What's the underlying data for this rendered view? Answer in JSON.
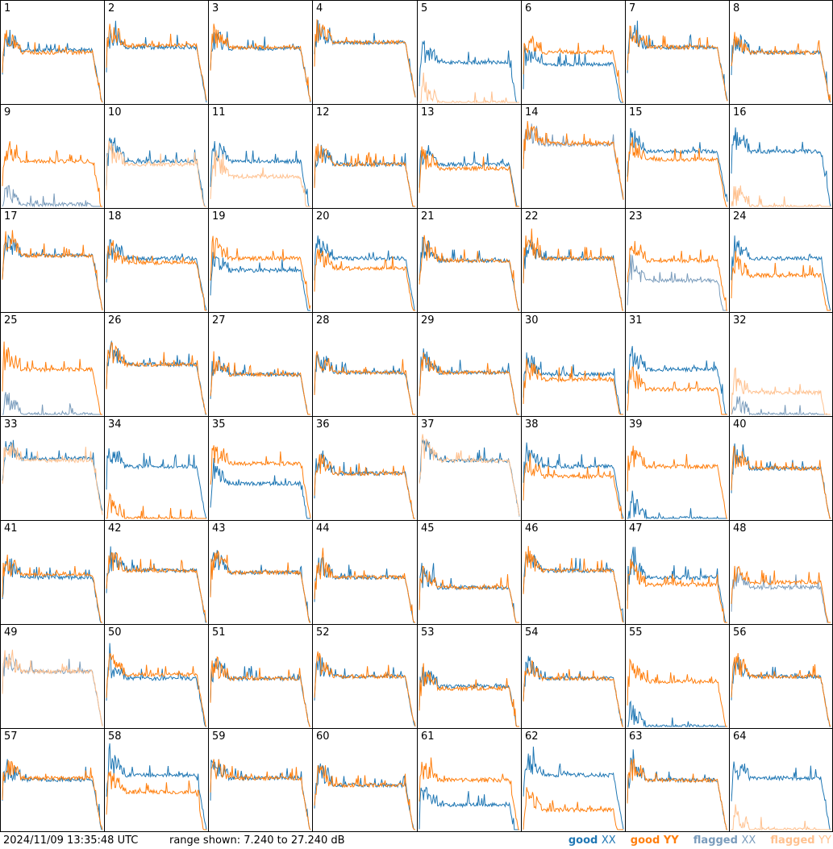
{
  "timestamp": "2024/11/09 13:35:48 UTC",
  "range": "range shown: 7.240 to 27.240 dB",
  "legend": {
    "good_xx": {
      "prefix": "good",
      "tag": "XX",
      "color": "#1f77b4"
    },
    "good_yy": {
      "prefix": "good",
      "tag": "YY",
      "color": "#ff7f0e"
    },
    "flagged_xx": {
      "prefix": "flagged",
      "tag": "XX",
      "color": "#7a9cbc"
    },
    "flagged_yy": {
      "prefix": "flagged",
      "tag": "YY",
      "color": "#ffc18f"
    }
  },
  "chart_data": {
    "type": "line",
    "title": "",
    "ylim": [
      7.24,
      27.24
    ],
    "ylabel_unit": "dB",
    "grid": false,
    "legend_placement": "bottom-right",
    "panel_count": 64,
    "panels": [
      {
        "label": "1",
        "xx": "good",
        "yy": "good",
        "xx_level": 0.52,
        "yy_level": 0.5
      },
      {
        "label": "2",
        "xx": "good",
        "yy": "good",
        "xx_level": 0.55,
        "yy_level": 0.57
      },
      {
        "label": "3",
        "xx": "good",
        "yy": "good",
        "xx_level": 0.54,
        "yy_level": 0.55
      },
      {
        "label": "4",
        "xx": "good",
        "yy": "good",
        "xx_level": 0.6,
        "yy_level": 0.6
      },
      {
        "label": "5",
        "xx": "good",
        "yy": "flagged",
        "xx_level": 0.4,
        "yy_level": 0.0
      },
      {
        "label": "6",
        "xx": "good",
        "yy": "good",
        "xx_level": 0.38,
        "yy_level": 0.5
      },
      {
        "label": "7",
        "xx": "good",
        "yy": "good",
        "xx_level": 0.55,
        "yy_level": 0.55
      },
      {
        "label": "8",
        "xx": "good",
        "yy": "good",
        "xx_level": 0.5,
        "yy_level": 0.5
      },
      {
        "label": "9",
        "xx": "flagged",
        "yy": "good",
        "xx_level": 0.02,
        "yy_level": 0.45
      },
      {
        "label": "10",
        "xx": "good",
        "yy": "flagged",
        "xx_level": 0.45,
        "yy_level": 0.42
      },
      {
        "label": "11",
        "xx": "good",
        "yy": "flagged",
        "xx_level": 0.45,
        "yy_level": 0.3
      },
      {
        "label": "12",
        "xx": "good",
        "yy": "good",
        "xx_level": 0.42,
        "yy_level": 0.42
      },
      {
        "label": "13",
        "xx": "good",
        "yy": "good",
        "xx_level": 0.42,
        "yy_level": 0.38
      },
      {
        "label": "14",
        "xx": "flagged",
        "yy": "good",
        "xx_level": 0.62,
        "yy_level": 0.63
      },
      {
        "label": "15",
        "xx": "good",
        "yy": "good",
        "xx_level": 0.55,
        "yy_level": 0.47
      },
      {
        "label": "16",
        "xx": "good",
        "yy": "flagged",
        "xx_level": 0.55,
        "yy_level": 0.0
      },
      {
        "label": "17",
        "xx": "good",
        "yy": "good",
        "xx_level": 0.55,
        "yy_level": 0.55
      },
      {
        "label": "18",
        "xx": "good",
        "yy": "good",
        "xx_level": 0.52,
        "yy_level": 0.48
      },
      {
        "label": "19",
        "xx": "good",
        "yy": "good",
        "xx_level": 0.4,
        "yy_level": 0.52
      },
      {
        "label": "20",
        "xx": "good",
        "yy": "good",
        "xx_level": 0.52,
        "yy_level": 0.42
      },
      {
        "label": "21",
        "xx": "good",
        "yy": "good",
        "xx_level": 0.5,
        "yy_level": 0.5
      },
      {
        "label": "22",
        "xx": "good",
        "yy": "good",
        "xx_level": 0.52,
        "yy_level": 0.52
      },
      {
        "label": "23",
        "xx": "flagged",
        "yy": "good",
        "xx_level": 0.3,
        "yy_level": 0.5
      },
      {
        "label": "24",
        "xx": "good",
        "yy": "good",
        "xx_level": 0.52,
        "yy_level": 0.35
      },
      {
        "label": "25",
        "xx": "flagged",
        "yy": "good",
        "xx_level": 0.0,
        "yy_level": 0.45
      },
      {
        "label": "26",
        "xx": "good",
        "yy": "good",
        "xx_level": 0.5,
        "yy_level": 0.5
      },
      {
        "label": "27",
        "xx": "good",
        "yy": "good",
        "xx_level": 0.4,
        "yy_level": 0.4
      },
      {
        "label": "28",
        "xx": "good",
        "yy": "good",
        "xx_level": 0.42,
        "yy_level": 0.42
      },
      {
        "label": "29",
        "xx": "good",
        "yy": "good",
        "xx_level": 0.42,
        "yy_level": 0.42
      },
      {
        "label": "30",
        "xx": "good",
        "yy": "good",
        "xx_level": 0.4,
        "yy_level": 0.35
      },
      {
        "label": "31",
        "xx": "good",
        "yy": "good",
        "xx_level": 0.45,
        "yy_level": 0.25
      },
      {
        "label": "32",
        "xx": "flagged",
        "yy": "flagged",
        "xx_level": 0.0,
        "yy_level": 0.22
      },
      {
        "label": "33",
        "xx": "good",
        "yy": "flagged",
        "xx_level": 0.6,
        "yy_level": 0.58
      },
      {
        "label": "34",
        "xx": "good",
        "yy": "good",
        "xx_level": 0.52,
        "yy_level": 0.0
      },
      {
        "label": "35",
        "xx": "good",
        "yy": "good",
        "xx_level": 0.35,
        "yy_level": 0.55
      },
      {
        "label": "36",
        "xx": "good",
        "yy": "good",
        "xx_level": 0.45,
        "yy_level": 0.45
      },
      {
        "label": "37",
        "xx": "good",
        "yy": "flagged",
        "xx_level": 0.58,
        "yy_level": 0.58
      },
      {
        "label": "38",
        "xx": "good",
        "yy": "good",
        "xx_level": 0.52,
        "yy_level": 0.42
      },
      {
        "label": "39",
        "xx": "good",
        "yy": "good",
        "xx_level": 0.0,
        "yy_level": 0.52
      },
      {
        "label": "40",
        "xx": "good",
        "yy": "good",
        "xx_level": 0.5,
        "yy_level": 0.5
      },
      {
        "label": "41",
        "xx": "good",
        "yy": "good",
        "xx_level": 0.45,
        "yy_level": 0.48
      },
      {
        "label": "42",
        "xx": "good",
        "yy": "good",
        "xx_level": 0.52,
        "yy_level": 0.52
      },
      {
        "label": "43",
        "xx": "good",
        "yy": "good",
        "xx_level": 0.5,
        "yy_level": 0.5
      },
      {
        "label": "44",
        "xx": "good",
        "yy": "good",
        "xx_level": 0.45,
        "yy_level": 0.45
      },
      {
        "label": "45",
        "xx": "good",
        "yy": "good",
        "xx_level": 0.35,
        "yy_level": 0.35
      },
      {
        "label": "46",
        "xx": "good",
        "yy": "good",
        "xx_level": 0.52,
        "yy_level": 0.52
      },
      {
        "label": "47",
        "xx": "good",
        "yy": "good",
        "xx_level": 0.45,
        "yy_level": 0.38
      },
      {
        "label": "48",
        "xx": "flagged",
        "yy": "good",
        "xx_level": 0.35,
        "yy_level": 0.4
      },
      {
        "label": "49",
        "xx": "flagged",
        "yy": "flagged",
        "xx_level": 0.55,
        "yy_level": 0.55
      },
      {
        "label": "50",
        "xx": "good",
        "yy": "good",
        "xx_level": 0.48,
        "yy_level": 0.52
      },
      {
        "label": "51",
        "xx": "good",
        "yy": "good",
        "xx_level": 0.48,
        "yy_level": 0.48
      },
      {
        "label": "52",
        "xx": "good",
        "yy": "good",
        "xx_level": 0.5,
        "yy_level": 0.5
      },
      {
        "label": "53",
        "xx": "good",
        "yy": "good",
        "xx_level": 0.4,
        "yy_level": 0.38
      },
      {
        "label": "54",
        "xx": "good",
        "yy": "good",
        "xx_level": 0.48,
        "yy_level": 0.48
      },
      {
        "label": "55",
        "xx": "good",
        "yy": "good",
        "xx_level": 0.0,
        "yy_level": 0.45
      },
      {
        "label": "56",
        "xx": "good",
        "yy": "good",
        "xx_level": 0.5,
        "yy_level": 0.5
      },
      {
        "label": "57",
        "xx": "good",
        "yy": "good",
        "xx_level": 0.5,
        "yy_level": 0.52
      },
      {
        "label": "58",
        "xx": "good",
        "yy": "good",
        "xx_level": 0.55,
        "yy_level": 0.38
      },
      {
        "label": "59",
        "xx": "good",
        "yy": "good",
        "xx_level": 0.52,
        "yy_level": 0.52
      },
      {
        "label": "60",
        "xx": "good",
        "yy": "good",
        "xx_level": 0.45,
        "yy_level": 0.45
      },
      {
        "label": "61",
        "xx": "good",
        "yy": "good",
        "xx_level": 0.25,
        "yy_level": 0.5
      },
      {
        "label": "62",
        "xx": "good",
        "yy": "good",
        "xx_level": 0.55,
        "yy_level": 0.2
      },
      {
        "label": "63",
        "xx": "good",
        "yy": "good",
        "xx_level": 0.5,
        "yy_level": 0.5
      },
      {
        "label": "64",
        "xx": "good",
        "yy": "flagged",
        "xx_level": 0.52,
        "yy_level": 0.0
      }
    ]
  }
}
